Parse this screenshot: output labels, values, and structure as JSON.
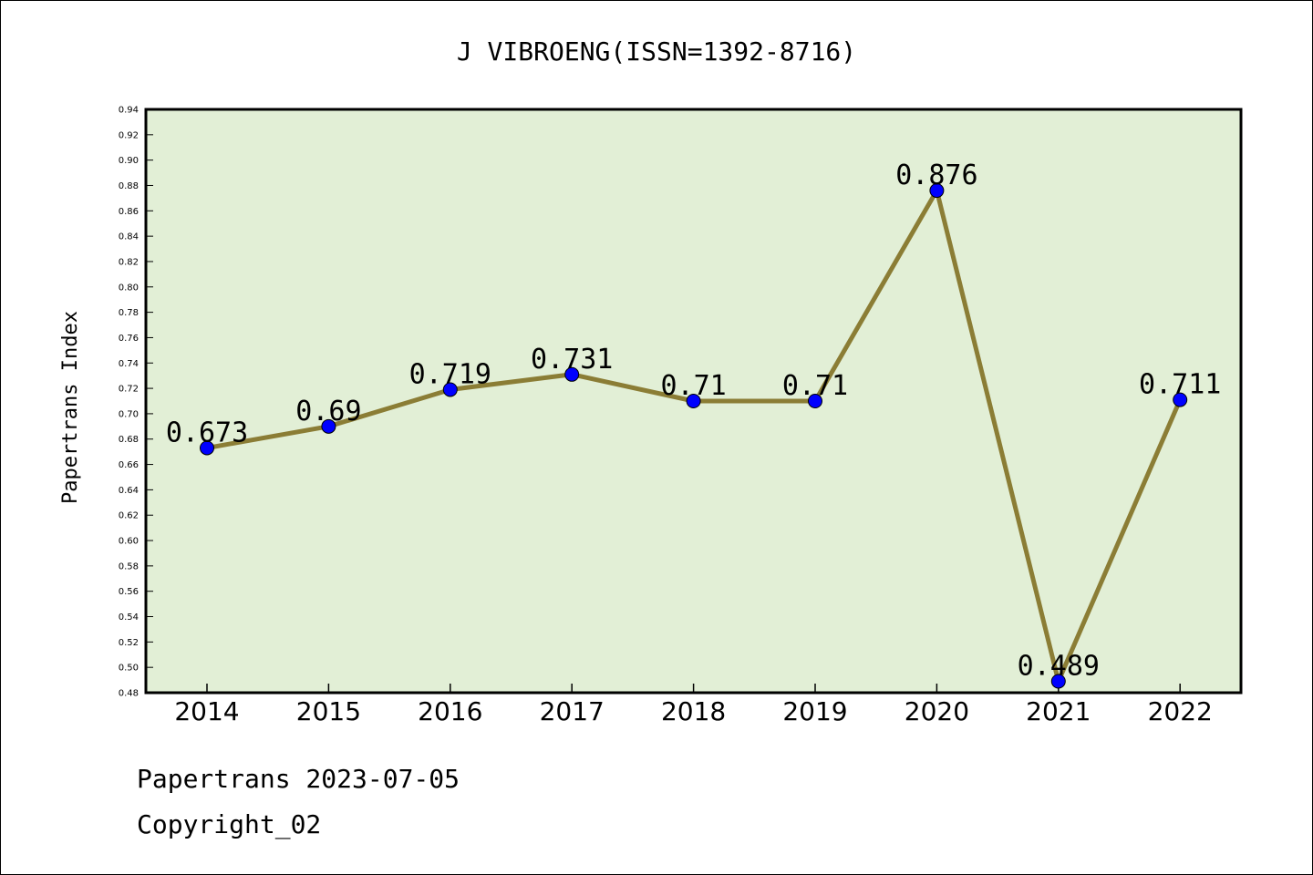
{
  "chart_data": {
    "type": "line",
    "title": "J VIBROENG(ISSN=1392-8716)",
    "xlabel": "",
    "ylabel": "Papertrans Index",
    "categories": [
      "2014",
      "2015",
      "2016",
      "2017",
      "2018",
      "2019",
      "2020",
      "2021",
      "2022"
    ],
    "series": [
      {
        "values": [
          0.673,
          0.69,
          0.719,
          0.731,
          0.71,
          0.71,
          0.876,
          0.489,
          0.711
        ],
        "labels": [
          "0.673",
          "0.69",
          "0.719",
          "0.731",
          "0.71",
          "0.71",
          "0.876",
          "0.489",
          "0.711"
        ]
      }
    ],
    "ylim": [
      0.48,
      0.94
    ],
    "yticks": [
      "0.48",
      "0.50",
      "0.52",
      "0.54",
      "0.56",
      "0.58",
      "0.60",
      "0.62",
      "0.64",
      "0.66",
      "0.68",
      "0.70",
      "0.72",
      "0.74",
      "0.76",
      "0.78",
      "0.80",
      "0.82",
      "0.84",
      "0.86",
      "0.88",
      "0.90",
      "0.92",
      "0.94"
    ],
    "grid": false,
    "legend": "none",
    "colors": {
      "plot_background": "#e2efd6",
      "line": "#8b7d35",
      "marker": "#0000ff"
    }
  },
  "footer": {
    "line1": "Papertrans 2023-07-05",
    "line2": "Copyright_02"
  }
}
